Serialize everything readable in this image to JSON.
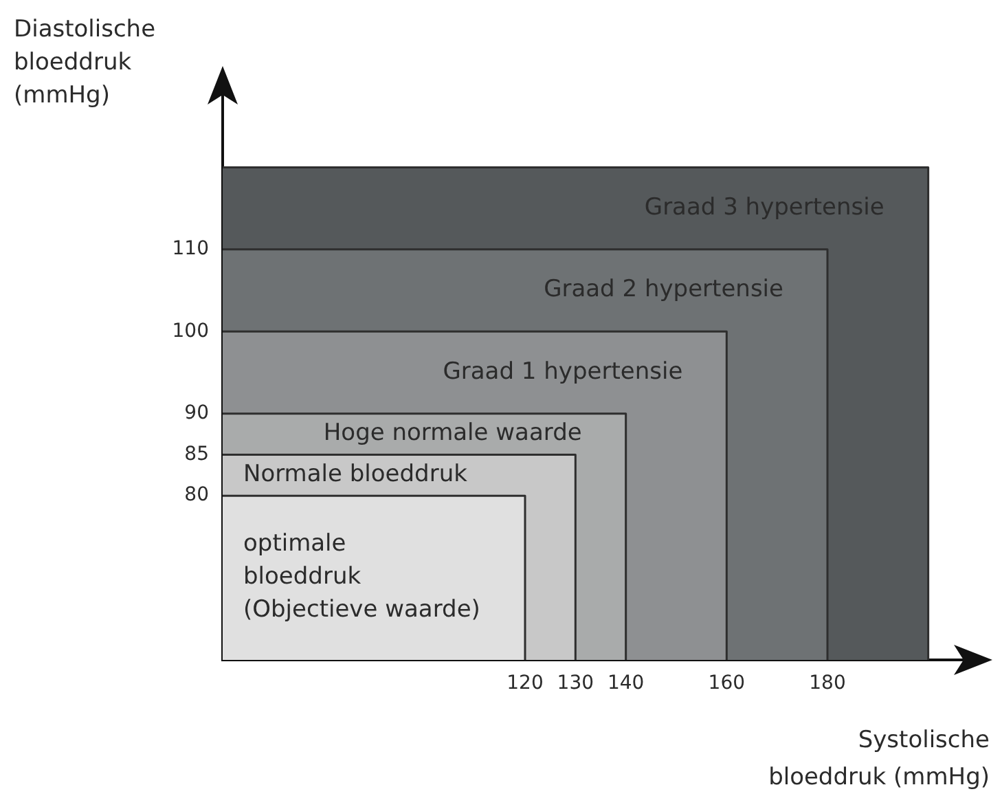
{
  "chart_data": {
    "type": "area",
    "xlabel": "Systolische\nbloeddruk (mmHg)",
    "ylabel": "Diastolische\nbloeddruk\n(mmHg)",
    "xlim": [
      60,
      210
    ],
    "xticks": [
      120,
      130,
      140,
      160,
      180
    ],
    "ylim": [
      60,
      130
    ],
    "yticks": [
      80,
      85,
      90,
      100,
      110
    ],
    "series": [
      {
        "name": "optimale\nbloeddruk\n(Objectieve waarde)",
        "color": "#e0e0e0",
        "x": [
          60,
          120,
          120
        ],
        "values": [
          80,
          80,
          60
        ]
      },
      {
        "name": "Normale bloeddruk",
        "color": "#c8c8c8",
        "x": [
          60,
          130,
          130
        ],
        "values": [
          85,
          85,
          60
        ]
      },
      {
        "name": "Hoge normale waarde",
        "color": "#a9abab",
        "x": [
          60,
          140,
          140
        ],
        "values": [
          90,
          90,
          60
        ]
      },
      {
        "name": "Graad 1 hypertensie",
        "color": "#8e9092",
        "x": [
          60,
          160,
          160
        ],
        "values": [
          100,
          100,
          60
        ]
      },
      {
        "name": "Graad 2 hypertensie",
        "color": "#6e7274",
        "x": [
          60,
          180,
          180
        ],
        "values": [
          110,
          110,
          60
        ]
      },
      {
        "name": "Graad 3 hypertensie",
        "color": "#55595b",
        "x": [
          60,
          200,
          200
        ],
        "values": [
          120,
          120,
          60
        ]
      }
    ]
  }
}
